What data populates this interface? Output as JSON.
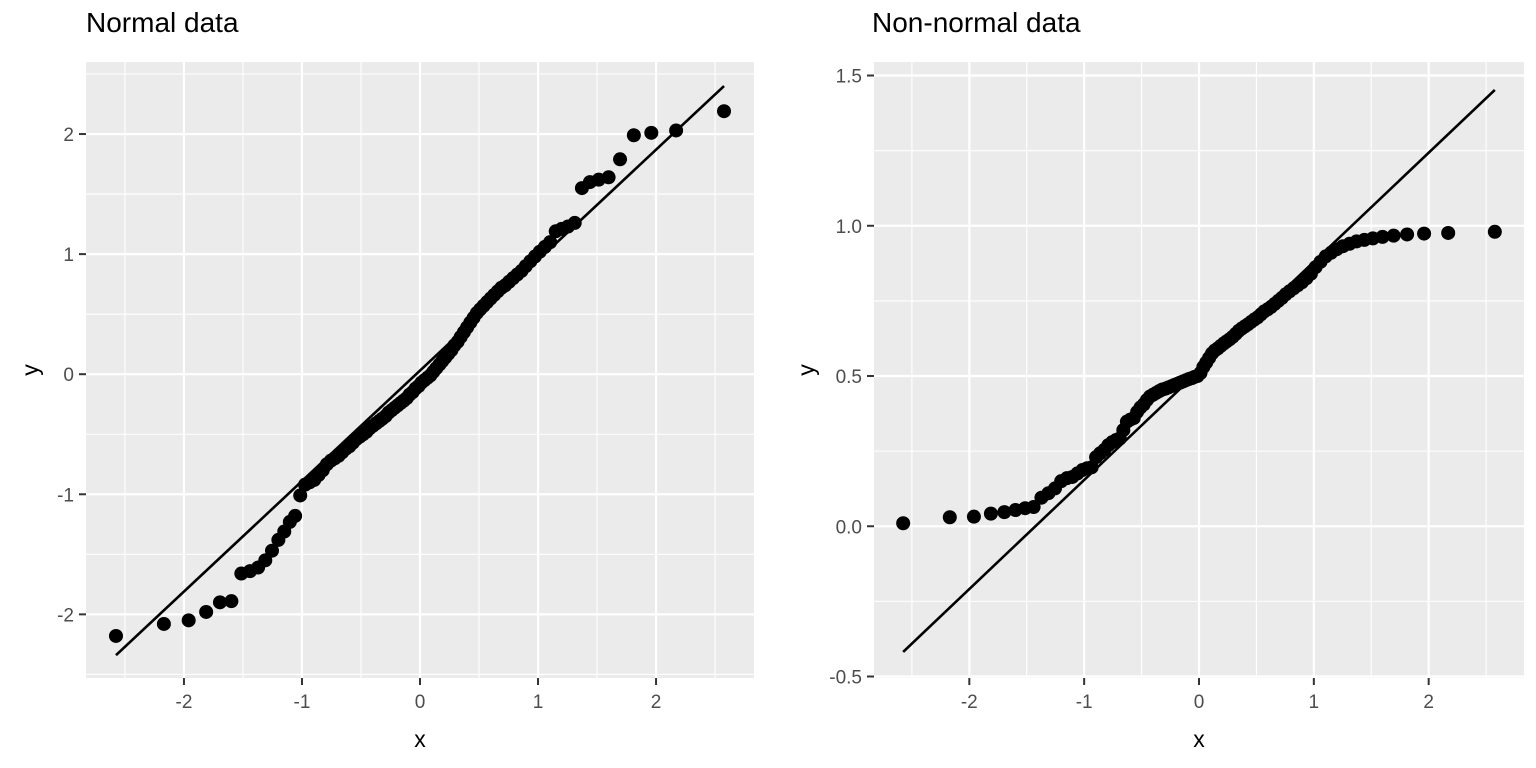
{
  "theme": {
    "background": "#FFFFFF",
    "panel_background": "#EBEBEB",
    "grid_color": "#FFFFFF",
    "major_grid_width": 2.2,
    "minor_grid_width": 1.1,
    "point_color": "#000000",
    "point_radius": 7,
    "ref_line_color": "#000000",
    "ref_line_width": 2.6,
    "tick_color": "#333333",
    "tick_length": 7,
    "tick_label_color": "#4D4D4D",
    "tick_label_size": 19,
    "axis_title_color": "#000000",
    "title_color": "#000000"
  },
  "chart_data": [
    {
      "type": "scatter",
      "subtype": "qq-plot",
      "title": "Normal data",
      "xlabel": "x",
      "ylabel": "y",
      "legend": false,
      "grid": true,
      "xlim": [
        -2.83,
        2.83
      ],
      "ylim": [
        -2.53,
        2.6
      ],
      "x_ticks": [
        -2,
        -1,
        0,
        1,
        2
      ],
      "x_tick_labels": [
        "-2",
        "-1",
        "0",
        "1",
        "2"
      ],
      "y_ticks": [
        -2,
        -1,
        0,
        1,
        2
      ],
      "y_tick_labels": [
        "-2",
        "-1",
        "0",
        "1",
        "2"
      ],
      "x_minor": [
        -2.5,
        -1.5,
        -0.5,
        0.5,
        1.5,
        2.5
      ],
      "y_minor": [
        -2.5,
        -1.5,
        -0.5,
        0.5,
        1.5,
        2.5
      ],
      "ref_line": {
        "slope": 0.92,
        "intercept": 0.03,
        "x_from": -2.576,
        "x_to": 2.576
      },
      "points": {
        "x": [
          -2.576,
          -2.17,
          -1.96,
          -1.812,
          -1.695,
          -1.598,
          -1.514,
          -1.44,
          -1.372,
          -1.311,
          -1.254,
          -1.2,
          -1.15,
          -1.103,
          -1.058,
          -1.015,
          -0.974,
          -0.935,
          -0.896,
          -0.86,
          -0.824,
          -0.789,
          -0.755,
          -0.722,
          -0.69,
          -0.659,
          -0.628,
          -0.598,
          -0.568,
          -0.539,
          -0.51,
          -0.482,
          -0.454,
          -0.426,
          -0.399,
          -0.372,
          -0.345,
          -0.319,
          -0.292,
          -0.266,
          -0.24,
          -0.215,
          -0.189,
          -0.164,
          -0.138,
          -0.113,
          -0.088,
          -0.063,
          -0.038,
          -0.013,
          0.013,
          0.038,
          0.063,
          0.088,
          0.113,
          0.138,
          0.164,
          0.189,
          0.215,
          0.24,
          0.266,
          0.292,
          0.319,
          0.345,
          0.372,
          0.399,
          0.426,
          0.454,
          0.482,
          0.51,
          0.539,
          0.568,
          0.598,
          0.628,
          0.659,
          0.69,
          0.722,
          0.755,
          0.789,
          0.824,
          0.86,
          0.896,
          0.935,
          0.974,
          1.015,
          1.058,
          1.103,
          1.15,
          1.2,
          1.254,
          1.311,
          1.372,
          1.44,
          1.514,
          1.598,
          1.695,
          1.812,
          1.96,
          2.17,
          2.576
        ],
        "y": [
          -2.18,
          -2.08,
          -2.05,
          -1.98,
          -1.9,
          -1.89,
          -1.66,
          -1.64,
          -1.61,
          -1.55,
          -1.47,
          -1.38,
          -1.31,
          -1.23,
          -1.18,
          -1.01,
          -0.92,
          -0.9,
          -0.88,
          -0.84,
          -0.8,
          -0.75,
          -0.72,
          -0.7,
          -0.68,
          -0.65,
          -0.62,
          -0.6,
          -0.57,
          -0.54,
          -0.52,
          -0.5,
          -0.48,
          -0.45,
          -0.43,
          -0.41,
          -0.39,
          -0.37,
          -0.35,
          -0.32,
          -0.3,
          -0.28,
          -0.26,
          -0.24,
          -0.22,
          -0.2,
          -0.17,
          -0.15,
          -0.12,
          -0.1,
          -0.07,
          -0.05,
          -0.03,
          -0.01,
          0.02,
          0.05,
          0.08,
          0.11,
          0.14,
          0.17,
          0.2,
          0.24,
          0.27,
          0.31,
          0.35,
          0.39,
          0.43,
          0.47,
          0.51,
          0.54,
          0.57,
          0.6,
          0.63,
          0.66,
          0.69,
          0.72,
          0.74,
          0.77,
          0.8,
          0.83,
          0.86,
          0.9,
          0.94,
          0.98,
          1.02,
          1.06,
          1.1,
          1.19,
          1.21,
          1.23,
          1.26,
          1.55,
          1.6,
          1.62,
          1.64,
          1.79,
          1.99,
          2.01,
          2.03,
          2.19
        ]
      }
    },
    {
      "type": "scatter",
      "subtype": "qq-plot",
      "title": "Non-normal data",
      "xlabel": "x",
      "ylabel": "y",
      "legend": false,
      "grid": true,
      "xlim": [
        -2.83,
        2.83
      ],
      "ylim": [
        -0.505,
        1.545
      ],
      "x_ticks": [
        -2,
        -1,
        0,
        1,
        2
      ],
      "x_tick_labels": [
        "-2",
        "-1",
        "0",
        "1",
        "2"
      ],
      "y_ticks": [
        -0.5,
        0.0,
        0.5,
        1.0,
        1.5
      ],
      "y_tick_labels": [
        "-0.5",
        "0.0",
        "0.5",
        "1.0",
        "1.5"
      ],
      "x_minor": [
        -2.5,
        -1.5,
        -0.5,
        0.5,
        1.5,
        2.5
      ],
      "y_minor": [
        -0.25,
        0.25,
        0.75,
        1.25
      ],
      "ref_line": {
        "slope": 0.363,
        "intercept": 0.517,
        "x_from": -2.576,
        "x_to": 2.576
      },
      "points": {
        "x": [
          -2.576,
          -2.17,
          -1.96,
          -1.812,
          -1.695,
          -1.598,
          -1.514,
          -1.44,
          -1.372,
          -1.311,
          -1.254,
          -1.2,
          -1.15,
          -1.103,
          -1.058,
          -1.015,
          -0.974,
          -0.935,
          -0.896,
          -0.86,
          -0.824,
          -0.789,
          -0.755,
          -0.722,
          -0.69,
          -0.659,
          -0.628,
          -0.598,
          -0.568,
          -0.539,
          -0.51,
          -0.482,
          -0.454,
          -0.426,
          -0.399,
          -0.372,
          -0.345,
          -0.319,
          -0.292,
          -0.266,
          -0.24,
          -0.215,
          -0.189,
          -0.164,
          -0.138,
          -0.113,
          -0.088,
          -0.063,
          -0.038,
          -0.013,
          0.013,
          0.038,
          0.063,
          0.088,
          0.113,
          0.138,
          0.164,
          0.189,
          0.215,
          0.24,
          0.266,
          0.292,
          0.319,
          0.345,
          0.372,
          0.399,
          0.426,
          0.454,
          0.482,
          0.51,
          0.539,
          0.568,
          0.598,
          0.628,
          0.659,
          0.69,
          0.722,
          0.755,
          0.789,
          0.824,
          0.86,
          0.896,
          0.935,
          0.974,
          1.015,
          1.058,
          1.103,
          1.15,
          1.2,
          1.254,
          1.311,
          1.372,
          1.44,
          1.514,
          1.598,
          1.695,
          1.812,
          1.96,
          2.17,
          2.576
        ],
        "y": [
          0.01,
          0.03,
          0.032,
          0.042,
          0.047,
          0.054,
          0.06,
          0.064,
          0.095,
          0.11,
          0.126,
          0.15,
          0.16,
          0.164,
          0.176,
          0.187,
          0.193,
          0.196,
          0.23,
          0.243,
          0.254,
          0.27,
          0.28,
          0.287,
          0.292,
          0.32,
          0.348,
          0.355,
          0.36,
          0.38,
          0.395,
          0.405,
          0.42,
          0.432,
          0.438,
          0.444,
          0.45,
          0.455,
          0.458,
          0.462,
          0.466,
          0.47,
          0.474,
          0.478,
          0.482,
          0.486,
          0.49,
          0.493,
          0.497,
          0.5,
          0.51,
          0.53,
          0.545,
          0.56,
          0.575,
          0.585,
          0.592,
          0.6,
          0.608,
          0.615,
          0.622,
          0.63,
          0.64,
          0.65,
          0.658,
          0.665,
          0.672,
          0.68,
          0.688,
          0.695,
          0.705,
          0.715,
          0.722,
          0.73,
          0.74,
          0.75,
          0.76,
          0.772,
          0.782,
          0.792,
          0.802,
          0.812,
          0.825,
          0.84,
          0.862,
          0.88,
          0.898,
          0.91,
          0.922,
          0.932,
          0.94,
          0.948,
          0.953,
          0.958,
          0.963,
          0.967,
          0.971,
          0.974,
          0.976,
          0.98
        ]
      }
    }
  ]
}
